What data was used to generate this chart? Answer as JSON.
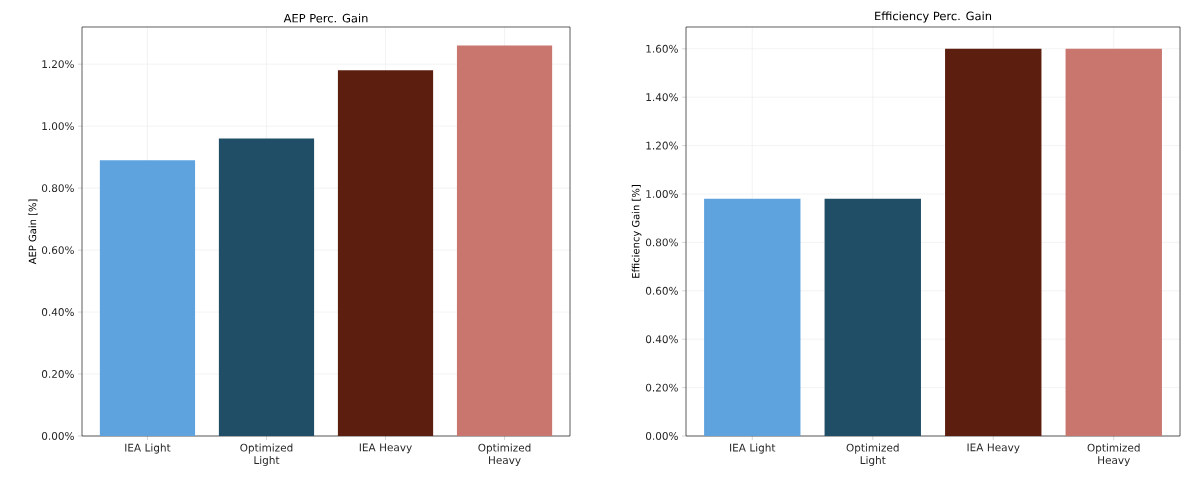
{
  "chart_data": [
    {
      "type": "bar",
      "title": "AEP Perc. Gain",
      "ylabel": "AEP Gain [%]",
      "categories": [
        "IEA Light",
        "Optimized Light",
        "IEA Heavy",
        "Optimized Heavy"
      ],
      "values": [
        0.89,
        0.96,
        1.18,
        1.26
      ],
      "colors": [
        "#5fa3de",
        "#1f4e66",
        "#5c1e0e",
        "#c8766e"
      ],
      "ylim": [
        0,
        1.32
      ],
      "yticks": [
        {
          "value": 0,
          "label": "0.00%"
        },
        {
          "value": 0.2,
          "label": "0.20%"
        },
        {
          "value": 0.4,
          "label": "0.40%"
        },
        {
          "value": 0.6,
          "label": "0.60%"
        },
        {
          "value": 0.8,
          "label": "0.80%"
        },
        {
          "value": 1.0,
          "label": "1.00%"
        },
        {
          "value": 1.2,
          "label": "1.20%"
        }
      ],
      "grid": true
    },
    {
      "type": "bar",
      "title": "Efficiency Perc. Gain",
      "ylabel": "Efficiency Gain [%]",
      "categories": [
        "IEA Light",
        "Optimized Light",
        "IEA Heavy",
        "Optimized Heavy"
      ],
      "values": [
        0.98,
        0.98,
        1.6,
        1.6
      ],
      "colors": [
        "#5fa3de",
        "#1f4e66",
        "#5c1e0e",
        "#c8766e"
      ],
      "ylim": [
        0,
        1.69
      ],
      "yticks": [
        {
          "value": 0,
          "label": "0.00%"
        },
        {
          "value": 0.2,
          "label": "0.20%"
        },
        {
          "value": 0.4,
          "label": "0.40%"
        },
        {
          "value": 0.6,
          "label": "0.60%"
        },
        {
          "value": 0.8,
          "label": "0.80%"
        },
        {
          "value": 1.0,
          "label": "1.00%"
        },
        {
          "value": 1.2,
          "label": "1.20%"
        },
        {
          "value": 1.4,
          "label": "1.40%"
        },
        {
          "value": 1.6,
          "label": "1.60%"
        }
      ],
      "grid": true
    }
  ]
}
